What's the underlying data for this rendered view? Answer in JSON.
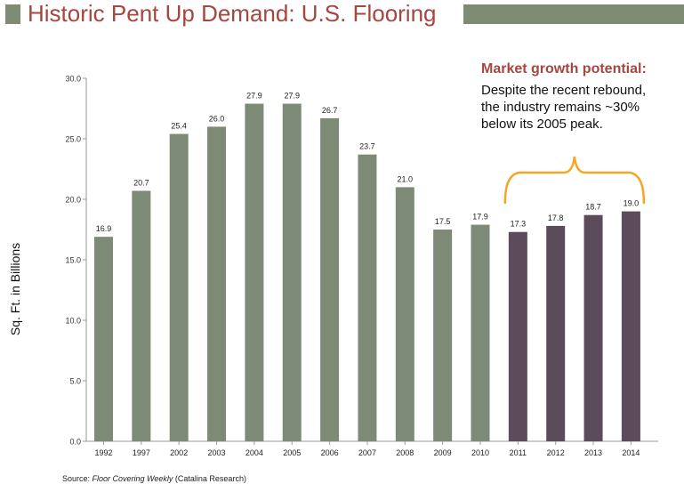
{
  "title": "Historic Pent Up Demand: U.S. Flooring",
  "colors": {
    "accent": "#a5463f",
    "title_bar": "#7f8c74",
    "historic_bar": "#7d8b76",
    "recent_bar": "#5b4b5b",
    "brace": "#f5a623",
    "axis": "#9a9a9a",
    "grid": "#d0d0d0"
  },
  "chart_data": {
    "type": "bar",
    "categories": [
      "1992",
      "1997",
      "2002",
      "2003",
      "2004",
      "2005",
      "2006",
      "2007",
      "2008",
      "2009",
      "2010",
      "2011",
      "2012",
      "2013",
      "2014"
    ],
    "values": [
      16.9,
      20.7,
      25.4,
      26.0,
      27.9,
      27.9,
      26.7,
      23.7,
      21.0,
      17.5,
      17.9,
      17.3,
      17.8,
      18.7,
      19.0
    ],
    "value_labels": [
      "16.9",
      "20.7",
      "25.4",
      "26.0",
      "27.9",
      "27.9",
      "26.7",
      "23.7",
      "21.0",
      "17.5",
      "17.9",
      "17.3",
      "17.8",
      "18.7",
      "19.0"
    ],
    "series_group": [
      "historic",
      "historic",
      "historic",
      "historic",
      "historic",
      "historic",
      "historic",
      "historic",
      "historic",
      "historic",
      "historic",
      "recent",
      "recent",
      "recent",
      "recent"
    ],
    "title": "Historic Pent Up Demand: U.S. Flooring",
    "xlabel": "",
    "ylabel": "Sq. Ft. in Billions",
    "ylim": [
      0,
      30
    ],
    "yticks": [
      "0.0",
      "5.0",
      "10.0",
      "15.0",
      "20.0",
      "25.0",
      "30.0"
    ],
    "grid": false,
    "bracket_span": [
      "2011",
      "2014"
    ]
  },
  "callout": {
    "heading": "Market growth potential:",
    "lines": [
      "Despite the recent rebound,",
      "the industry remains ~30%",
      "below its 2005 peak."
    ]
  },
  "source": {
    "prefix": "Source: ",
    "publication": "Floor Covering Weekly",
    "suffix": " (Catalina Research)"
  }
}
